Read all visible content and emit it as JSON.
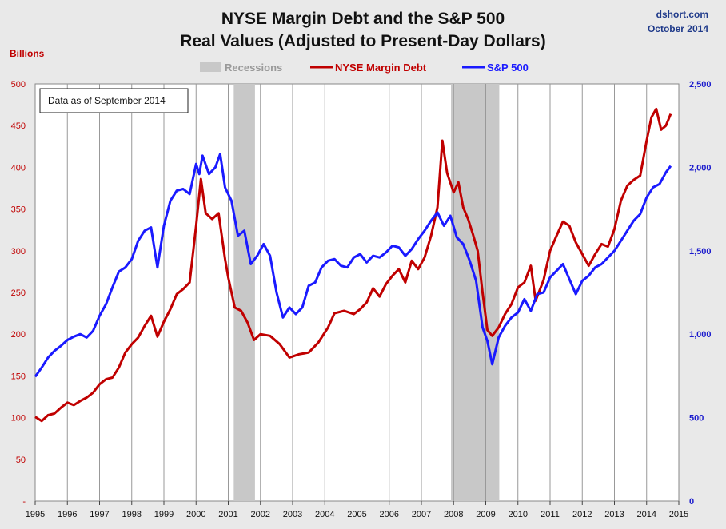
{
  "header": {
    "title_line1": "NYSE Margin Debt and the S&P 500",
    "title_line2": "Real Values (Adjusted to Present-Day Dollars)",
    "credit_line1": "dshort.com",
    "credit_line2": "October 2014",
    "left_unit": "Billions",
    "note": "Data as of September 2014"
  },
  "legend": {
    "recessions": "Recessions",
    "margin": "NYSE Margin Debt",
    "sp500": "S&P 500"
  },
  "colors": {
    "margin": "#c00000",
    "sp500": "#1a1aff",
    "recession": "#c8c8c8",
    "grid": "#999999",
    "plot_bg": "#ffffff"
  },
  "chart_data": {
    "type": "line",
    "title": "NYSE Margin Debt and the S&P 500 Real Values (Adjusted to Present-Day Dollars)",
    "x_range": [
      1995,
      2015
    ],
    "x_ticks": [
      "1995",
      "1996",
      "1997",
      "1998",
      "1999",
      "2000",
      "2001",
      "2002",
      "2003",
      "2004",
      "2005",
      "2006",
      "2007",
      "2008",
      "2009",
      "2010",
      "2011",
      "2012",
      "2013",
      "2014",
      "2015"
    ],
    "y_left": {
      "label": "Billions",
      "range": [
        0,
        500
      ],
      "ticks": [
        "-",
        "50",
        "100",
        "150",
        "200",
        "250",
        "300",
        "350",
        "400",
        "450",
        "500"
      ]
    },
    "y_right": {
      "range": [
        0,
        2500
      ],
      "ticks": [
        "0",
        "500",
        "1,000",
        "1,500",
        "2,000",
        "2,500"
      ]
    },
    "grid": "vertical at each year",
    "legend_position": "top-center",
    "recessions": [
      [
        2001.17,
        2001.83
      ],
      [
        2007.92,
        2009.42
      ]
    ],
    "series": [
      {
        "name": "NYSE Margin Debt",
        "axis": "left",
        "points": [
          [
            1995.0,
            101
          ],
          [
            1995.2,
            96
          ],
          [
            1995.4,
            103
          ],
          [
            1995.6,
            105
          ],
          [
            1995.8,
            112
          ],
          [
            1996.0,
            118
          ],
          [
            1996.2,
            115
          ],
          [
            1996.4,
            120
          ],
          [
            1996.6,
            124
          ],
          [
            1996.8,
            130
          ],
          [
            1997.0,
            140
          ],
          [
            1997.2,
            146
          ],
          [
            1997.4,
            148
          ],
          [
            1997.6,
            160
          ],
          [
            1997.8,
            178
          ],
          [
            1998.0,
            188
          ],
          [
            1998.2,
            196
          ],
          [
            1998.4,
            210
          ],
          [
            1998.6,
            222
          ],
          [
            1998.8,
            197
          ],
          [
            1999.0,
            215
          ],
          [
            1999.2,
            230
          ],
          [
            1999.4,
            248
          ],
          [
            1999.6,
            254
          ],
          [
            1999.8,
            262
          ],
          [
            2000.0,
            330
          ],
          [
            2000.15,
            386
          ],
          [
            2000.3,
            345
          ],
          [
            2000.5,
            338
          ],
          [
            2000.7,
            345
          ],
          [
            2000.9,
            290
          ],
          [
            2001.0,
            268
          ],
          [
            2001.2,
            232
          ],
          [
            2001.4,
            228
          ],
          [
            2001.6,
            214
          ],
          [
            2001.8,
            193
          ],
          [
            2002.0,
            200
          ],
          [
            2002.3,
            198
          ],
          [
            2002.6,
            188
          ],
          [
            2002.9,
            172
          ],
          [
            2003.2,
            176
          ],
          [
            2003.5,
            178
          ],
          [
            2003.8,
            190
          ],
          [
            2004.1,
            208
          ],
          [
            2004.3,
            225
          ],
          [
            2004.6,
            228
          ],
          [
            2004.9,
            224
          ],
          [
            2005.1,
            230
          ],
          [
            2005.3,
            238
          ],
          [
            2005.5,
            255
          ],
          [
            2005.7,
            245
          ],
          [
            2005.9,
            260
          ],
          [
            2006.1,
            270
          ],
          [
            2006.3,
            278
          ],
          [
            2006.5,
            262
          ],
          [
            2006.7,
            288
          ],
          [
            2006.9,
            278
          ],
          [
            2007.1,
            292
          ],
          [
            2007.3,
            318
          ],
          [
            2007.5,
            352
          ],
          [
            2007.65,
            432
          ],
          [
            2007.8,
            393
          ],
          [
            2008.0,
            370
          ],
          [
            2008.15,
            382
          ],
          [
            2008.3,
            352
          ],
          [
            2008.45,
            338
          ],
          [
            2008.6,
            320
          ],
          [
            2008.75,
            300
          ],
          [
            2008.9,
            250
          ],
          [
            2009.05,
            205
          ],
          [
            2009.2,
            198
          ],
          [
            2009.4,
            208
          ],
          [
            2009.6,
            224
          ],
          [
            2009.8,
            236
          ],
          [
            2010.0,
            256
          ],
          [
            2010.2,
            262
          ],
          [
            2010.4,
            282
          ],
          [
            2010.55,
            240
          ],
          [
            2010.8,
            265
          ],
          [
            2011.0,
            300
          ],
          [
            2011.2,
            318
          ],
          [
            2011.4,
            335
          ],
          [
            2011.6,
            330
          ],
          [
            2011.8,
            310
          ],
          [
            2012.0,
            296
          ],
          [
            2012.2,
            282
          ],
          [
            2012.4,
            296
          ],
          [
            2012.6,
            308
          ],
          [
            2012.8,
            305
          ],
          [
            2013.0,
            326
          ],
          [
            2013.2,
            360
          ],
          [
            2013.4,
            378
          ],
          [
            2013.6,
            385
          ],
          [
            2013.8,
            390
          ],
          [
            2014.0,
            432
          ],
          [
            2014.15,
            460
          ],
          [
            2014.3,
            470
          ],
          [
            2014.45,
            445
          ],
          [
            2014.6,
            450
          ],
          [
            2014.75,
            464
          ]
        ]
      },
      {
        "name": "S&P 500",
        "axis": "right",
        "points": [
          [
            1995.0,
            745
          ],
          [
            1995.2,
            800
          ],
          [
            1995.4,
            860
          ],
          [
            1995.6,
            900
          ],
          [
            1995.8,
            930
          ],
          [
            1996.0,
            965
          ],
          [
            1996.2,
            985
          ],
          [
            1996.4,
            1000
          ],
          [
            1996.6,
            980
          ],
          [
            1996.8,
            1020
          ],
          [
            1997.0,
            1110
          ],
          [
            1997.2,
            1180
          ],
          [
            1997.4,
            1280
          ],
          [
            1997.6,
            1375
          ],
          [
            1997.8,
            1400
          ],
          [
            1998.0,
            1450
          ],
          [
            1998.2,
            1560
          ],
          [
            1998.4,
            1620
          ],
          [
            1998.6,
            1640
          ],
          [
            1998.8,
            1400
          ],
          [
            1999.0,
            1650
          ],
          [
            1999.2,
            1800
          ],
          [
            1999.4,
            1860
          ],
          [
            1999.6,
            1870
          ],
          [
            1999.8,
            1840
          ],
          [
            2000.0,
            2020
          ],
          [
            2000.1,
            1960
          ],
          [
            2000.2,
            2070
          ],
          [
            2000.4,
            1960
          ],
          [
            2000.6,
            2000
          ],
          [
            2000.75,
            2080
          ],
          [
            2000.9,
            1880
          ],
          [
            2001.1,
            1800
          ],
          [
            2001.3,
            1590
          ],
          [
            2001.5,
            1620
          ],
          [
            2001.7,
            1420
          ],
          [
            2001.9,
            1470
          ],
          [
            2002.1,
            1540
          ],
          [
            2002.3,
            1470
          ],
          [
            2002.5,
            1250
          ],
          [
            2002.7,
            1100
          ],
          [
            2002.9,
            1160
          ],
          [
            2003.1,
            1120
          ],
          [
            2003.3,
            1160
          ],
          [
            2003.5,
            1290
          ],
          [
            2003.7,
            1310
          ],
          [
            2003.9,
            1400
          ],
          [
            2004.1,
            1440
          ],
          [
            2004.3,
            1450
          ],
          [
            2004.5,
            1410
          ],
          [
            2004.7,
            1400
          ],
          [
            2004.9,
            1460
          ],
          [
            2005.1,
            1480
          ],
          [
            2005.3,
            1430
          ],
          [
            2005.5,
            1470
          ],
          [
            2005.7,
            1460
          ],
          [
            2005.9,
            1490
          ],
          [
            2006.1,
            1530
          ],
          [
            2006.3,
            1520
          ],
          [
            2006.5,
            1470
          ],
          [
            2006.7,
            1510
          ],
          [
            2006.9,
            1570
          ],
          [
            2007.1,
            1620
          ],
          [
            2007.3,
            1680
          ],
          [
            2007.5,
            1730
          ],
          [
            2007.7,
            1650
          ],
          [
            2007.9,
            1710
          ],
          [
            2008.1,
            1580
          ],
          [
            2008.3,
            1540
          ],
          [
            2008.5,
            1440
          ],
          [
            2008.7,
            1320
          ],
          [
            2008.9,
            1040
          ],
          [
            2009.05,
            960
          ],
          [
            2009.2,
            820
          ],
          [
            2009.4,
            980
          ],
          [
            2009.6,
            1050
          ],
          [
            2009.8,
            1100
          ],
          [
            2010.0,
            1130
          ],
          [
            2010.2,
            1210
          ],
          [
            2010.4,
            1140
          ],
          [
            2010.6,
            1240
          ],
          [
            2010.8,
            1250
          ],
          [
            2011.0,
            1340
          ],
          [
            2011.2,
            1380
          ],
          [
            2011.4,
            1420
          ],
          [
            2011.6,
            1330
          ],
          [
            2011.8,
            1240
          ],
          [
            2012.0,
            1320
          ],
          [
            2012.2,
            1350
          ],
          [
            2012.4,
            1400
          ],
          [
            2012.6,
            1420
          ],
          [
            2012.8,
            1460
          ],
          [
            2013.0,
            1500
          ],
          [
            2013.2,
            1560
          ],
          [
            2013.4,
            1620
          ],
          [
            2013.6,
            1680
          ],
          [
            2013.8,
            1720
          ],
          [
            2014.0,
            1820
          ],
          [
            2014.2,
            1880
          ],
          [
            2014.4,
            1900
          ],
          [
            2014.6,
            1970
          ],
          [
            2014.75,
            2008
          ]
        ]
      }
    ]
  }
}
